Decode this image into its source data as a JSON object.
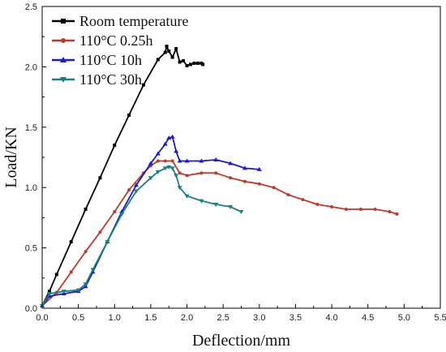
{
  "chart_data": {
    "type": "line",
    "xlabel": "Deflection/mm",
    "ylabel": "Load/KN",
    "xlim": [
      0,
      5.5
    ],
    "ylim": [
      0,
      2.5
    ],
    "xticks": [
      "0.0",
      "0.5",
      "1.0",
      "1.5",
      "2.0",
      "2.5",
      "3.0",
      "3.5",
      "4.0",
      "4.5",
      "5.0",
      "5.5"
    ],
    "yticks": [
      "0.0",
      "0.5",
      "1.0",
      "1.5",
      "2.0",
      "2.5"
    ],
    "grid": false,
    "legend_position": "top-left",
    "series": [
      {
        "name": "Room temperature",
        "color": "#000000",
        "marker": "square",
        "x": [
          0.0,
          0.1,
          0.2,
          0.4,
          0.6,
          0.8,
          1.0,
          1.2,
          1.4,
          1.6,
          1.7,
          1.72,
          1.75,
          1.8,
          1.85,
          1.9,
          1.95,
          2.0,
          2.05,
          2.1,
          2.15,
          2.2,
          2.22
        ],
        "y": [
          0.02,
          0.14,
          0.28,
          0.55,
          0.82,
          1.08,
          1.35,
          1.6,
          1.85,
          2.06,
          2.12,
          2.17,
          2.13,
          2.08,
          2.15,
          2.04,
          2.05,
          2.01,
          2.02,
          2.03,
          2.03,
          2.03,
          2.02
        ]
      },
      {
        "name": "110°C 0.25h",
        "color": "#c0392b",
        "marker": "circle",
        "x": [
          0.0,
          0.2,
          0.4,
          0.6,
          0.8,
          1.0,
          1.2,
          1.4,
          1.5,
          1.6,
          1.7,
          1.8,
          1.9,
          2.0,
          2.2,
          2.4,
          2.6,
          2.8,
          3.0,
          3.2,
          3.4,
          3.6,
          3.8,
          4.0,
          4.2,
          4.4,
          4.6,
          4.8,
          4.9
        ],
        "y": [
          0.02,
          0.13,
          0.3,
          0.47,
          0.63,
          0.8,
          0.98,
          1.12,
          1.18,
          1.22,
          1.22,
          1.22,
          1.12,
          1.1,
          1.12,
          1.12,
          1.08,
          1.05,
          1.03,
          1.0,
          0.94,
          0.9,
          0.86,
          0.84,
          0.82,
          0.82,
          0.82,
          0.8,
          0.78
        ]
      },
      {
        "name": "110°C 10h",
        "color": "#1a1ad6",
        "marker": "triangle-up",
        "x": [
          0.0,
          0.1,
          0.3,
          0.5,
          0.6,
          0.7,
          0.9,
          1.1,
          1.3,
          1.5,
          1.6,
          1.7,
          1.75,
          1.8,
          1.85,
          1.9,
          2.0,
          2.2,
          2.4,
          2.6,
          2.8,
          3.0
        ],
        "y": [
          0.02,
          0.1,
          0.12,
          0.14,
          0.18,
          0.3,
          0.55,
          0.8,
          1.02,
          1.2,
          1.28,
          1.36,
          1.41,
          1.42,
          1.3,
          1.22,
          1.22,
          1.22,
          1.23,
          1.2,
          1.16,
          1.15
        ]
      },
      {
        "name": "110°C 30h",
        "color": "#1a8080",
        "marker": "triangle-down",
        "x": [
          0.0,
          0.1,
          0.3,
          0.5,
          0.6,
          0.7,
          0.9,
          1.1,
          1.3,
          1.5,
          1.6,
          1.7,
          1.75,
          1.8,
          1.85,
          1.9,
          2.0,
          2.2,
          2.4,
          2.6,
          2.75
        ],
        "y": [
          0.02,
          0.12,
          0.14,
          0.15,
          0.2,
          0.32,
          0.55,
          0.78,
          0.97,
          1.08,
          1.13,
          1.16,
          1.17,
          1.16,
          1.1,
          1.0,
          0.93,
          0.89,
          0.86,
          0.84,
          0.8
        ]
      }
    ]
  }
}
